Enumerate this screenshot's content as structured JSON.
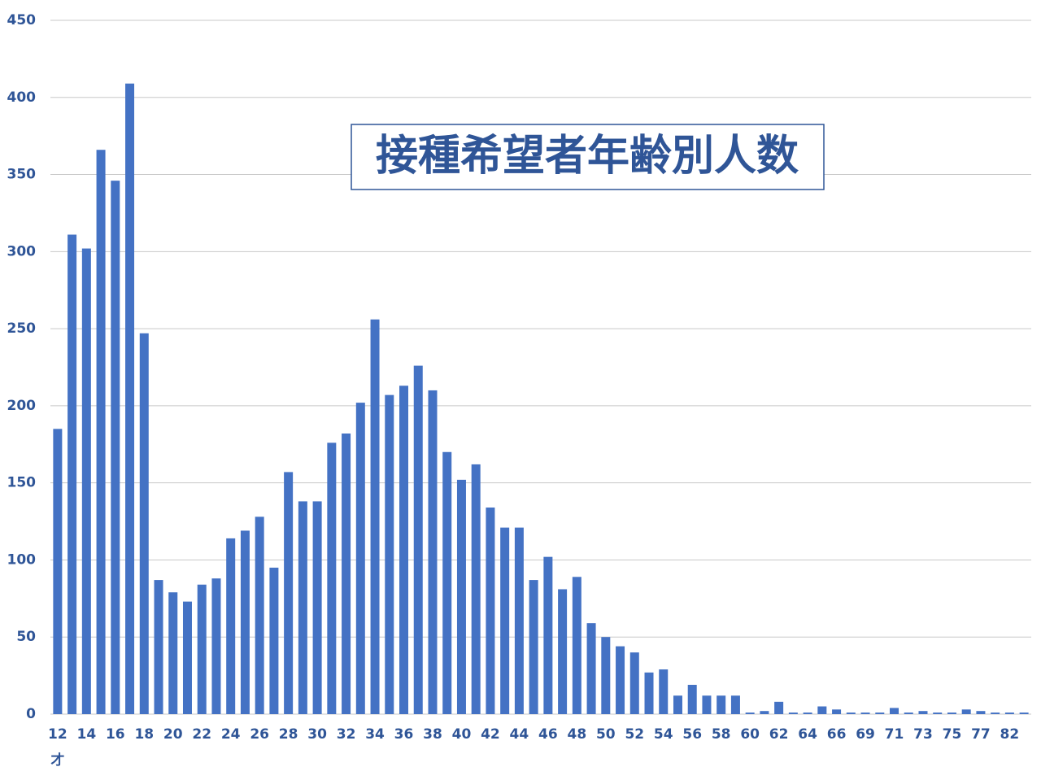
{
  "chart_data": {
    "type": "bar",
    "title": "接種希望者年齢別人数",
    "categories": [
      "12",
      null,
      "14",
      null,
      "16",
      null,
      "18",
      null,
      "20",
      null,
      "22",
      null,
      "24",
      null,
      "26",
      null,
      "28",
      null,
      "30",
      null,
      "32",
      null,
      "34",
      null,
      "36",
      null,
      "38",
      null,
      "40",
      null,
      "42",
      null,
      "44",
      null,
      "46",
      null,
      "48",
      null,
      "50",
      null,
      "52",
      null,
      "54",
      null,
      "56",
      null,
      "58",
      null,
      "60",
      null,
      "62",
      null,
      "64",
      null,
      "66",
      null,
      "69",
      null,
      "71",
      null,
      "73",
      null,
      "75",
      null,
      "77",
      null,
      "82",
      null
    ],
    "x_unit": "才",
    "values": [
      185,
      311,
      302,
      366,
      346,
      409,
      247,
      87,
      79,
      73,
      84,
      88,
      114,
      119,
      128,
      95,
      157,
      138,
      138,
      176,
      182,
      202,
      256,
      207,
      213,
      226,
      210,
      170,
      152,
      162,
      134,
      121,
      121,
      87,
      102,
      81,
      89,
      59,
      50,
      44,
      40,
      27,
      29,
      12,
      19,
      12,
      12,
      12,
      1,
      2,
      8,
      1,
      1,
      5,
      3,
      1,
      1,
      1,
      4,
      1,
      2,
      1,
      1,
      3,
      2,
      1,
      1,
      1
    ],
    "color": "#4472c4",
    "ylim": [
      0,
      450
    ],
    "yticks": [
      0,
      50,
      100,
      150,
      200,
      250,
      300,
      350,
      400,
      450
    ],
    "grid": true
  }
}
